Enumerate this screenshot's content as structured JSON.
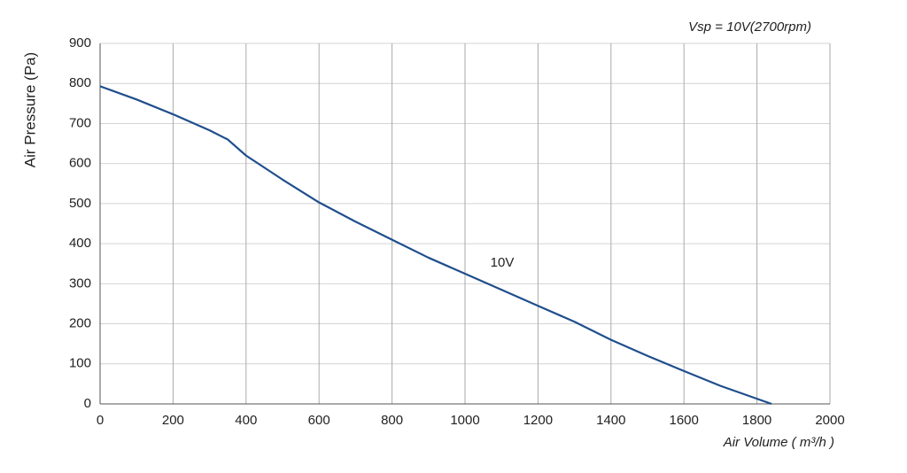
{
  "chart_data": {
    "type": "line",
    "subtitle": "Vsp = 10V(2700rpm)",
    "x_label": "Air Volume ( m³/h )",
    "y_label": "Air Pressure  (Pa)",
    "annotation": "10V",
    "x": [
      0,
      100,
      200,
      300,
      350,
      400,
      500,
      600,
      700,
      800,
      900,
      1000,
      1100,
      1200,
      1300,
      1400,
      1500,
      1600,
      1700,
      1840
    ],
    "series": [
      {
        "name": "10V",
        "color": "#1f4e8c",
        "values": [
          793,
          760,
          723,
          683,
          660,
          620,
          560,
          503,
          455,
          410,
          365,
          325,
          285,
          245,
          205,
          160,
          120,
          82,
          45,
          0
        ]
      }
    ],
    "xlim": [
      0,
      2000
    ],
    "xticks": [
      0,
      200,
      400,
      600,
      800,
      1000,
      1200,
      1400,
      1600,
      1800,
      2000
    ],
    "ylim": [
      0,
      900
    ],
    "yticks": [
      0,
      100,
      200,
      300,
      400,
      500,
      600,
      700,
      800,
      900
    ],
    "grid": true
  }
}
